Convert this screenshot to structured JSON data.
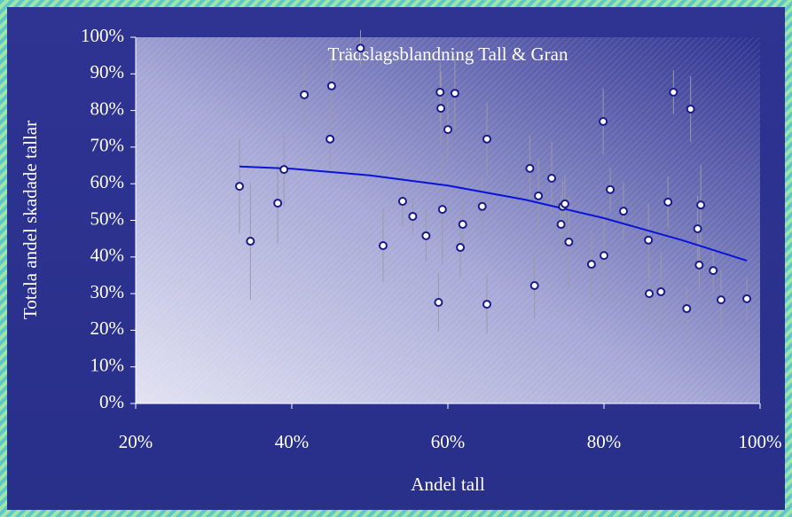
{
  "chart_data": {
    "type": "scatter",
    "title": "Trädslagsblandning Tall & Gran",
    "xlabel": "Andel tall",
    "ylabel": "Totala andel skadade tallar",
    "x": [
      33.3,
      34.7,
      38.2,
      39,
      41.6,
      44.9,
      45.1,
      48.8,
      51.7,
      54.2,
      55.5,
      57.2,
      58.8,
      59,
      59.1,
      59.3,
      60,
      60.9,
      61.6,
      61.9,
      64.4,
      65,
      65,
      70.5,
      71.1,
      71.6,
      73.3,
      74.5,
      74.7,
      75,
      75.5,
      78.4,
      79.9,
      80,
      80.8,
      82.5,
      85.7,
      85.8,
      87.3,
      88.2,
      88.9,
      90.6,
      91.1,
      92,
      92.2,
      92.4,
      94,
      95,
      98.3
    ],
    "values": [
      59.3,
      44.3,
      54.7,
      63.9,
      84.3,
      72.2,
      86.7,
      97,
      43.1,
      55.2,
      51.1,
      45.8,
      27.6,
      85,
      80.6,
      53,
      74.8,
      84.7,
      42.6,
      48.9,
      53.8,
      72.2,
      27.1,
      64.2,
      32.2,
      56.7,
      61.5,
      48.9,
      53.8,
      54.5,
      44.1,
      38,
      77,
      40.4,
      58.4,
      52.5,
      44.6,
      30,
      30.5,
      55,
      85,
      25.9,
      80.4,
      47.7,
      37.8,
      54.2,
      36.3,
      28.3,
      28.6
    ],
    "errors": [
      13,
      16,
      11,
      10,
      8,
      8,
      9,
      5,
      10,
      7,
      5,
      7,
      8,
      8,
      10,
      15,
      8,
      10,
      8,
      7,
      8,
      10,
      8,
      9,
      9,
      10,
      10,
      8,
      7,
      8,
      12,
      9,
      9,
      12,
      6,
      8,
      10,
      8,
      11,
      7,
      6,
      6,
      9,
      9,
      7,
      11,
      6,
      8,
      6
    ],
    "color": "#1a1a8c",
    "error_color": "#9a9aa8",
    "trendline": {
      "x": [
        33.3,
        40,
        50,
        60,
        70,
        80,
        90,
        98.3
      ],
      "values": [
        64.7,
        64.1,
        62.3,
        59.5,
        55.6,
        50.6,
        44.6,
        39
      ],
      "color": "#0a14d8"
    },
    "xlim": [
      20,
      100
    ],
    "ylim": [
      0,
      100
    ],
    "xticks": [
      {
        "value": 20,
        "label": "20%"
      },
      {
        "value": 40,
        "label": "40%"
      },
      {
        "value": 60,
        "label": "60%"
      },
      {
        "value": 80,
        "label": "80%"
      },
      {
        "value": 100,
        "label": "100%"
      }
    ],
    "yticks": [
      {
        "value": 0,
        "label": "0%"
      },
      {
        "value": 10,
        "label": "10%"
      },
      {
        "value": 20,
        "label": "20%"
      },
      {
        "value": 30,
        "label": "30%"
      },
      {
        "value": 40,
        "label": "40%"
      },
      {
        "value": 50,
        "label": "50%"
      },
      {
        "value": 60,
        "label": "60%"
      },
      {
        "value": 70,
        "label": "70%"
      },
      {
        "value": 80,
        "label": "80%"
      },
      {
        "value": 90,
        "label": "90%"
      },
      {
        "value": 100,
        "label": "100%"
      }
    ]
  }
}
